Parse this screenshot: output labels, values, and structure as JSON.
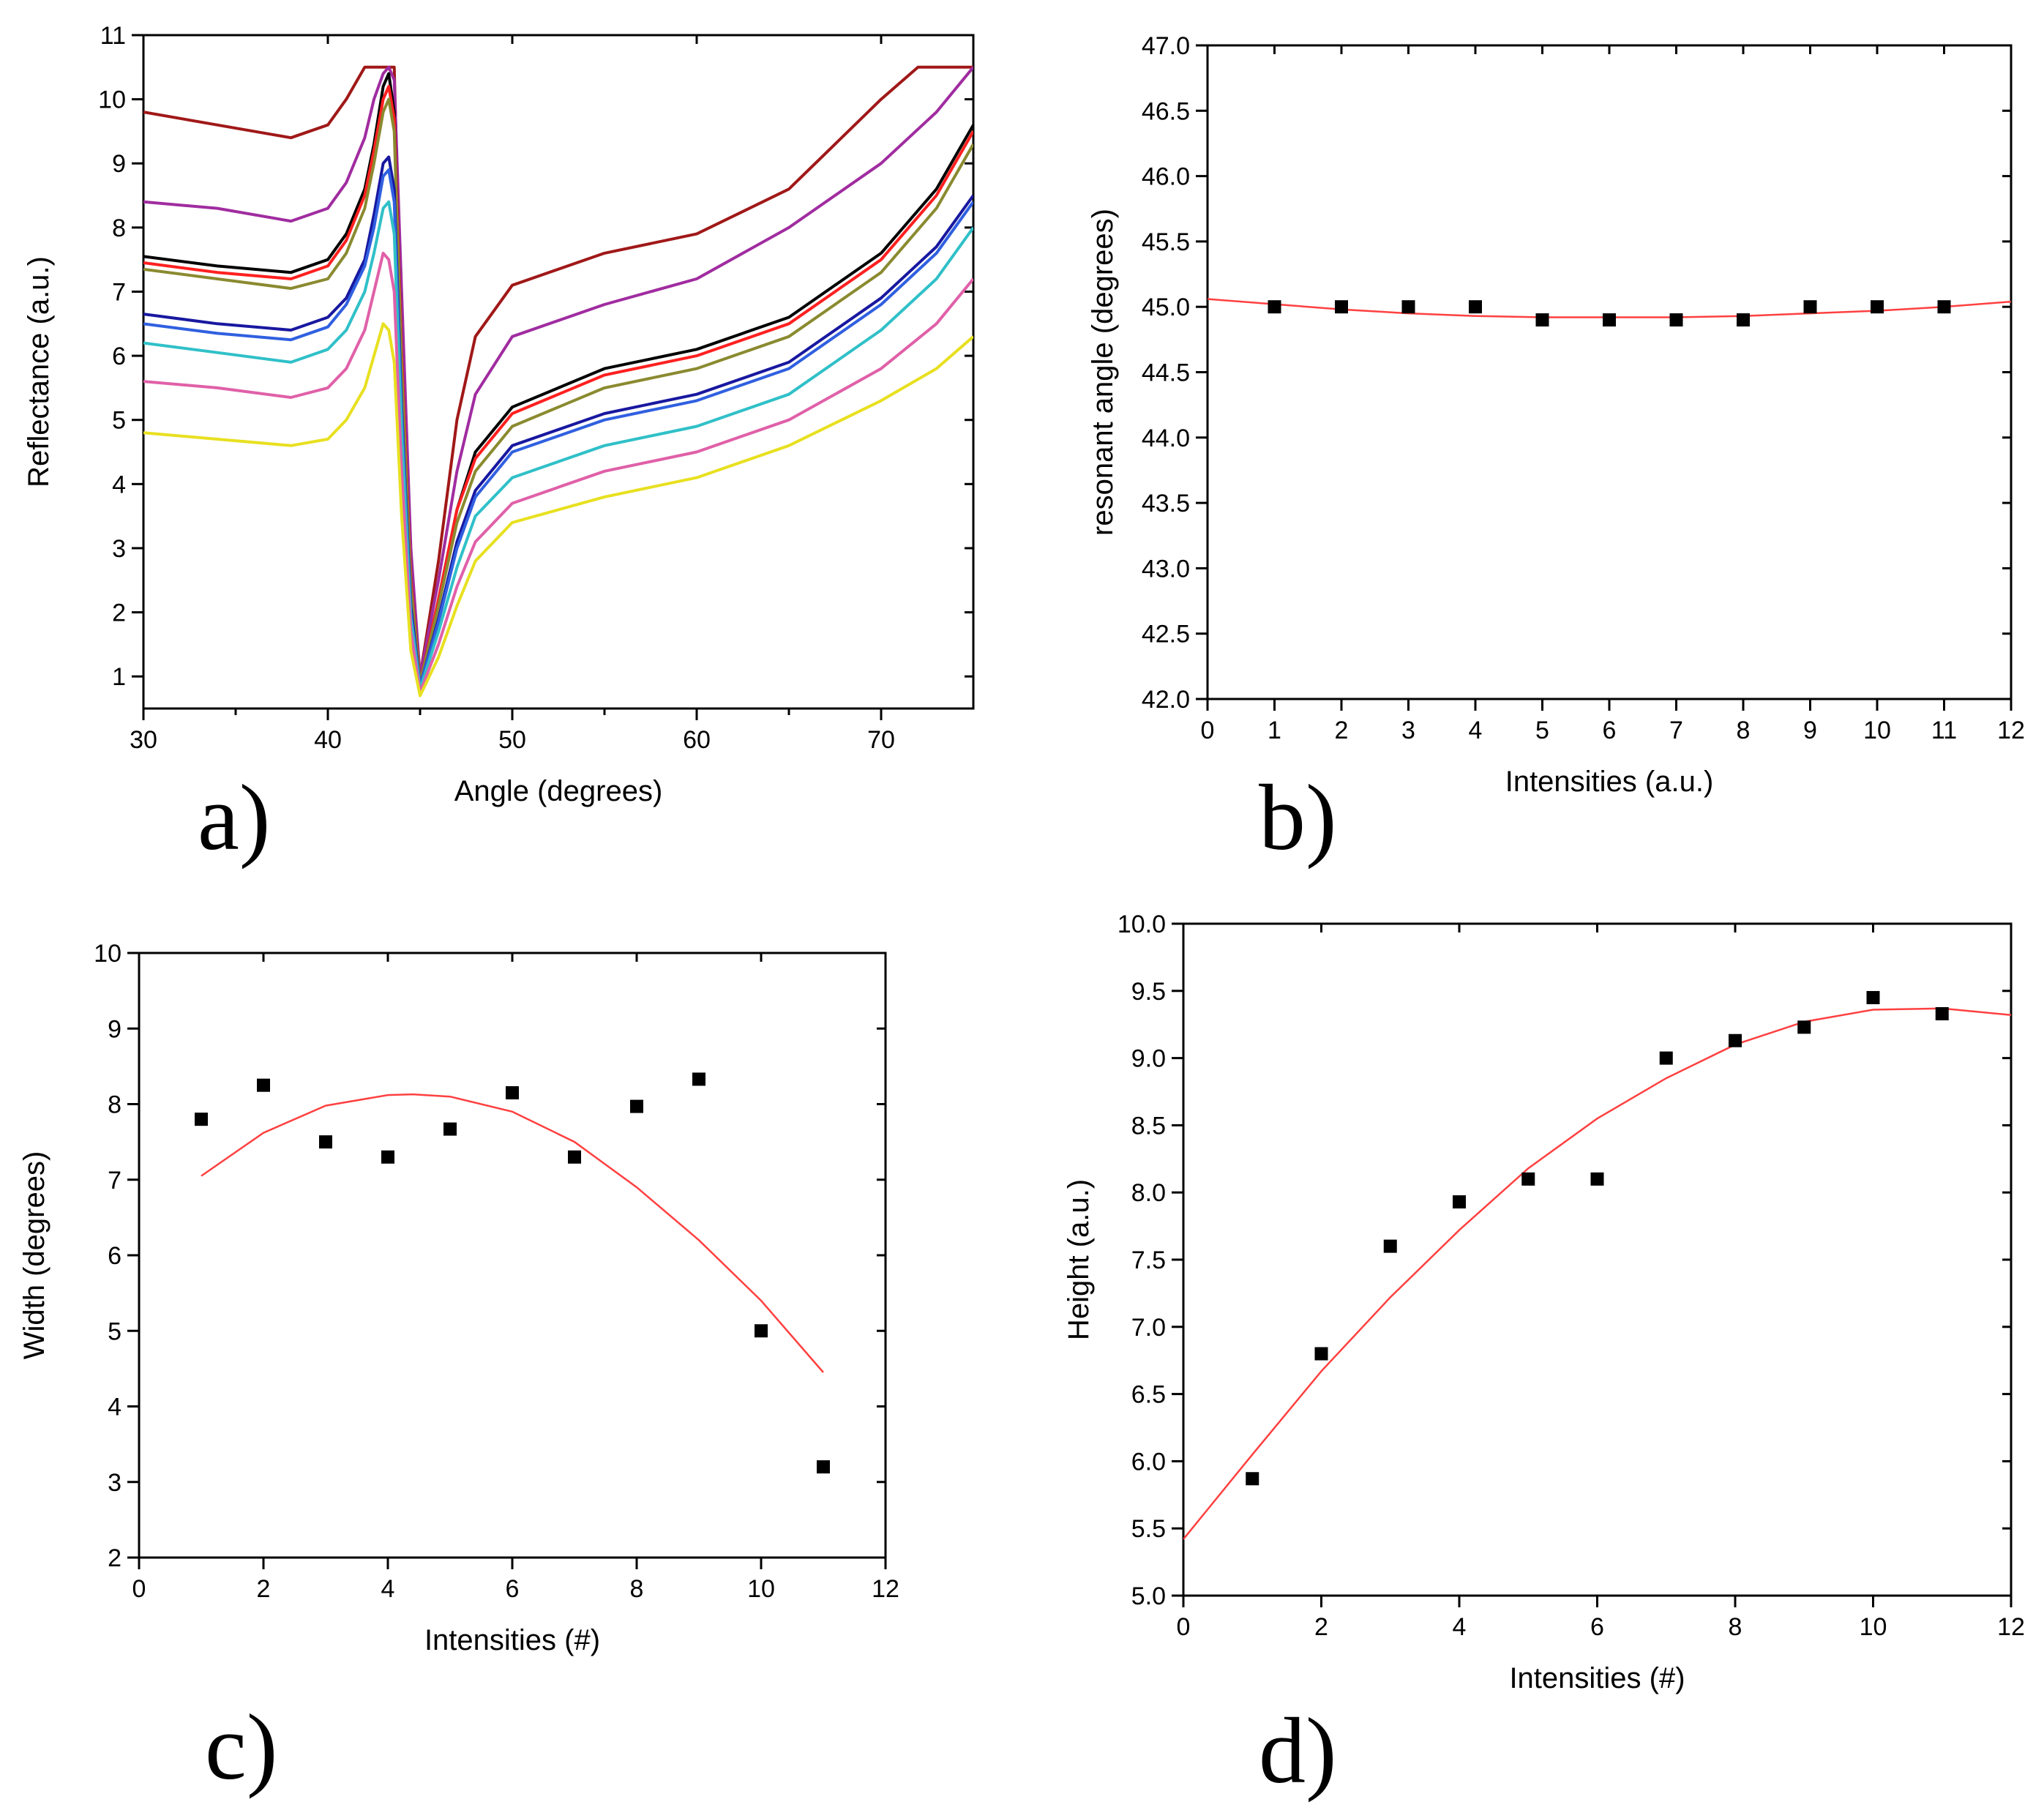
{
  "chart_data": [
    {
      "id": "a",
      "type": "line",
      "panel_label": "a)",
      "xlabel": "Angle (degrees)",
      "ylabel": "Reflectance (a.u.)",
      "xlim": [
        30,
        75
      ],
      "ylim": [
        0.5,
        11
      ],
      "xticks": [
        30,
        40,
        50,
        60,
        70
      ],
      "yticks": [
        1,
        2,
        3,
        4,
        5,
        6,
        7,
        8,
        9,
        10,
        11
      ],
      "series": [
        {
          "color": "#a01818",
          "x": [
            30,
            34,
            38,
            40,
            41,
            42,
            43,
            43.6,
            44,
            44.5,
            45,
            46,
            47,
            48,
            50,
            55,
            60,
            65,
            70,
            72,
            75
          ],
          "y": [
            9.8,
            9.6,
            9.4,
            9.6,
            10.0,
            10.5,
            10.5,
            10.5,
            6.0,
            2.0,
            1.0,
            2.8,
            5.0,
            6.3,
            7.1,
            7.6,
            7.9,
            8.6,
            10.0,
            10.5,
            10.5
          ]
        },
        {
          "color": "#a02ca0",
          "x": [
            30,
            34,
            38,
            40,
            41,
            42,
            42.5,
            43,
            43.3,
            43.6,
            44,
            44.5,
            45,
            46,
            47,
            48,
            50,
            55,
            60,
            65,
            70,
            73,
            75
          ],
          "y": [
            8.4,
            8.3,
            8.1,
            8.3,
            8.7,
            9.4,
            10.0,
            10.4,
            10.5,
            10.3,
            7.0,
            3.0,
            1.0,
            2.5,
            4.2,
            5.4,
            6.3,
            6.8,
            7.2,
            8.0,
            9.0,
            9.8,
            10.5
          ]
        },
        {
          "color": "#000000",
          "x": [
            30,
            34,
            38,
            40,
            41,
            42,
            42.5,
            43,
            43.3,
            43.6,
            44,
            44.5,
            45,
            46,
            47,
            48,
            50,
            55,
            60,
            65,
            70,
            73,
            75
          ],
          "y": [
            7.55,
            7.4,
            7.3,
            7.5,
            7.9,
            8.6,
            9.3,
            10.2,
            10.4,
            9.8,
            6.0,
            2.5,
            0.9,
            2.2,
            3.6,
            4.5,
            5.2,
            5.8,
            6.1,
            6.6,
            7.6,
            8.6,
            9.6
          ]
        },
        {
          "color": "#ff2020",
          "x": [
            30,
            34,
            38,
            40,
            41,
            42,
            42.5,
            43,
            43.3,
            43.6,
            44,
            44.5,
            45,
            46,
            47,
            48,
            50,
            55,
            60,
            65,
            70,
            73,
            75
          ],
          "y": [
            7.45,
            7.3,
            7.2,
            7.4,
            7.8,
            8.5,
            9.2,
            10.0,
            10.2,
            9.7,
            6.0,
            2.5,
            0.9,
            2.2,
            3.6,
            4.4,
            5.1,
            5.7,
            6.0,
            6.5,
            7.5,
            8.5,
            9.5
          ]
        },
        {
          "color": "#8a8a30",
          "x": [
            30,
            34,
            38,
            40,
            41,
            42,
            42.5,
            43,
            43.3,
            43.6,
            44,
            44.5,
            45,
            46,
            47,
            48,
            50,
            55,
            60,
            65,
            70,
            73,
            75
          ],
          "y": [
            7.35,
            7.2,
            7.05,
            7.2,
            7.6,
            8.3,
            9.0,
            9.8,
            10.0,
            9.5,
            5.8,
            2.4,
            0.9,
            2.1,
            3.4,
            4.2,
            4.9,
            5.5,
            5.8,
            6.3,
            7.3,
            8.3,
            9.3
          ]
        },
        {
          "color": "#1818a0",
          "x": [
            30,
            34,
            38,
            40,
            41,
            42,
            42.5,
            43,
            43.3,
            43.6,
            44,
            44.5,
            45,
            46,
            47,
            48,
            50,
            55,
            60,
            65,
            70,
            73,
            75
          ],
          "y": [
            6.65,
            6.5,
            6.4,
            6.6,
            6.9,
            7.5,
            8.2,
            9.0,
            9.1,
            8.6,
            5.2,
            2.1,
            0.85,
            1.9,
            3.1,
            3.9,
            4.6,
            5.1,
            5.4,
            5.9,
            6.9,
            7.7,
            8.5
          ]
        },
        {
          "color": "#3060e0",
          "x": [
            30,
            34,
            38,
            40,
            41,
            42,
            42.5,
            43,
            43.3,
            43.6,
            44,
            44.5,
            45,
            46,
            47,
            48,
            50,
            55,
            60,
            65,
            70,
            73,
            75
          ],
          "y": [
            6.5,
            6.35,
            6.25,
            6.45,
            6.8,
            7.4,
            8.0,
            8.8,
            8.9,
            8.4,
            5.1,
            2.0,
            0.85,
            1.85,
            3.0,
            3.8,
            4.5,
            5.0,
            5.3,
            5.8,
            6.8,
            7.6,
            8.4
          ]
        },
        {
          "color": "#30c0c8",
          "x": [
            30,
            34,
            38,
            40,
            41,
            42,
            42.5,
            43,
            43.3,
            43.6,
            44,
            44.5,
            45,
            46,
            47,
            48,
            50,
            55,
            60,
            65,
            70,
            73,
            75
          ],
          "y": [
            6.2,
            6.05,
            5.9,
            6.1,
            6.4,
            7.0,
            7.6,
            8.3,
            8.4,
            7.9,
            4.8,
            1.9,
            0.8,
            1.7,
            2.7,
            3.5,
            4.1,
            4.6,
            4.9,
            5.4,
            6.4,
            7.2,
            8.0
          ]
        },
        {
          "color": "#e060a8",
          "x": [
            30,
            34,
            38,
            40,
            41,
            42,
            42.5,
            43,
            43.3,
            43.6,
            44,
            44.5,
            45,
            46,
            47,
            48,
            50,
            55,
            60,
            65,
            70,
            73,
            75
          ],
          "y": [
            5.6,
            5.5,
            5.35,
            5.5,
            5.8,
            6.4,
            7.0,
            7.6,
            7.5,
            7.0,
            4.2,
            1.7,
            0.75,
            1.5,
            2.4,
            3.1,
            3.7,
            4.2,
            4.5,
            5.0,
            5.8,
            6.5,
            7.2
          ]
        },
        {
          "color": "#e8e020",
          "x": [
            30,
            34,
            38,
            40,
            41,
            42,
            42.5,
            43,
            43.3,
            43.6,
            44,
            44.5,
            45,
            46,
            47,
            48,
            50,
            55,
            60,
            65,
            70,
            73,
            75
          ],
          "y": [
            4.8,
            4.7,
            4.6,
            4.7,
            5.0,
            5.5,
            6.0,
            6.5,
            6.4,
            5.9,
            3.5,
            1.4,
            0.7,
            1.3,
            2.1,
            2.8,
            3.4,
            3.8,
            4.1,
            4.6,
            5.3,
            5.8,
            6.3
          ]
        }
      ]
    },
    {
      "id": "b",
      "type": "scatter",
      "panel_label": "b)",
      "xlabel": "Intensities (a.u.)",
      "ylabel": "resonant angle (degrees)",
      "xlim": [
        0,
        12
      ],
      "ylim": [
        42.0,
        47.0
      ],
      "xticks": [
        0,
        1,
        2,
        3,
        4,
        5,
        6,
        7,
        8,
        9,
        10,
        11,
        12
      ],
      "yticks": [
        "42.0",
        "42.5",
        "43.0",
        "43.5",
        "44.0",
        "44.5",
        "45.0",
        "45.5",
        "46.0",
        "46.5",
        "47.0"
      ],
      "points": {
        "x": [
          1,
          2,
          3,
          4,
          5,
          6,
          7,
          8,
          9,
          10,
          11
        ],
        "y": [
          45.0,
          45.0,
          45.0,
          45.0,
          44.9,
          44.9,
          44.9,
          44.9,
          45.0,
          45.0,
          45.0
        ]
      },
      "fit": {
        "color": "#ff4040",
        "x": [
          0,
          1,
          2,
          3,
          4,
          5,
          6,
          7,
          8,
          9,
          10,
          11,
          12
        ],
        "y": [
          45.06,
          45.02,
          44.98,
          44.95,
          44.93,
          44.92,
          44.92,
          44.92,
          44.93,
          44.95,
          44.97,
          45.0,
          45.04
        ]
      }
    },
    {
      "id": "c",
      "type": "scatter",
      "panel_label": "c)",
      "xlabel": "Intensities (#)",
      "ylabel": "Width (degrees)",
      "xlim": [
        0,
        12
      ],
      "ylim": [
        2,
        10
      ],
      "xticks": [
        0,
        2,
        4,
        6,
        8,
        10,
        12
      ],
      "yticks": [
        2,
        3,
        4,
        5,
        6,
        7,
        8,
        9,
        10
      ],
      "points": {
        "x": [
          1,
          2,
          3,
          4,
          5,
          6,
          7,
          8,
          9,
          10,
          11
        ],
        "y": [
          7.8,
          8.25,
          7.5,
          7.3,
          7.67,
          8.15,
          7.3,
          7.97,
          8.33,
          5.0,
          3.2
        ]
      },
      "fit": {
        "color": "#ff4040",
        "x": [
          1,
          2,
          3,
          4,
          4.4,
          5,
          6,
          7,
          8,
          9,
          10,
          11
        ],
        "y": [
          7.05,
          7.62,
          7.98,
          8.12,
          8.13,
          8.1,
          7.9,
          7.5,
          6.9,
          6.2,
          5.4,
          4.45
        ]
      }
    },
    {
      "id": "d",
      "type": "scatter",
      "panel_label": "d)",
      "xlabel": "Intensities (#)",
      "ylabel": "Height (a.u.)",
      "xlim": [
        0,
        12
      ],
      "ylim": [
        5.0,
        10.0
      ],
      "xticks": [
        0,
        2,
        4,
        6,
        8,
        10,
        12
      ],
      "yticks": [
        "5.0",
        "5.5",
        "6.0",
        "6.5",
        "7.0",
        "7.5",
        "8.0",
        "8.5",
        "9.0",
        "9.5",
        "10.0"
      ],
      "points": {
        "x": [
          1,
          2,
          3,
          4,
          5,
          6,
          7,
          8,
          9,
          10,
          11
        ],
        "y": [
          5.87,
          6.8,
          7.6,
          7.93,
          8.1,
          8.1,
          9.0,
          9.13,
          9.23,
          9.45,
          9.33
        ]
      },
      "fit": {
        "color": "#ff4040",
        "x": [
          0,
          1,
          2,
          3,
          4,
          5,
          6,
          7,
          8,
          9,
          10,
          11,
          12
        ],
        "y": [
          5.42,
          6.05,
          6.67,
          7.22,
          7.72,
          8.18,
          8.55,
          8.85,
          9.1,
          9.27,
          9.36,
          9.37,
          9.32
        ]
      }
    }
  ]
}
